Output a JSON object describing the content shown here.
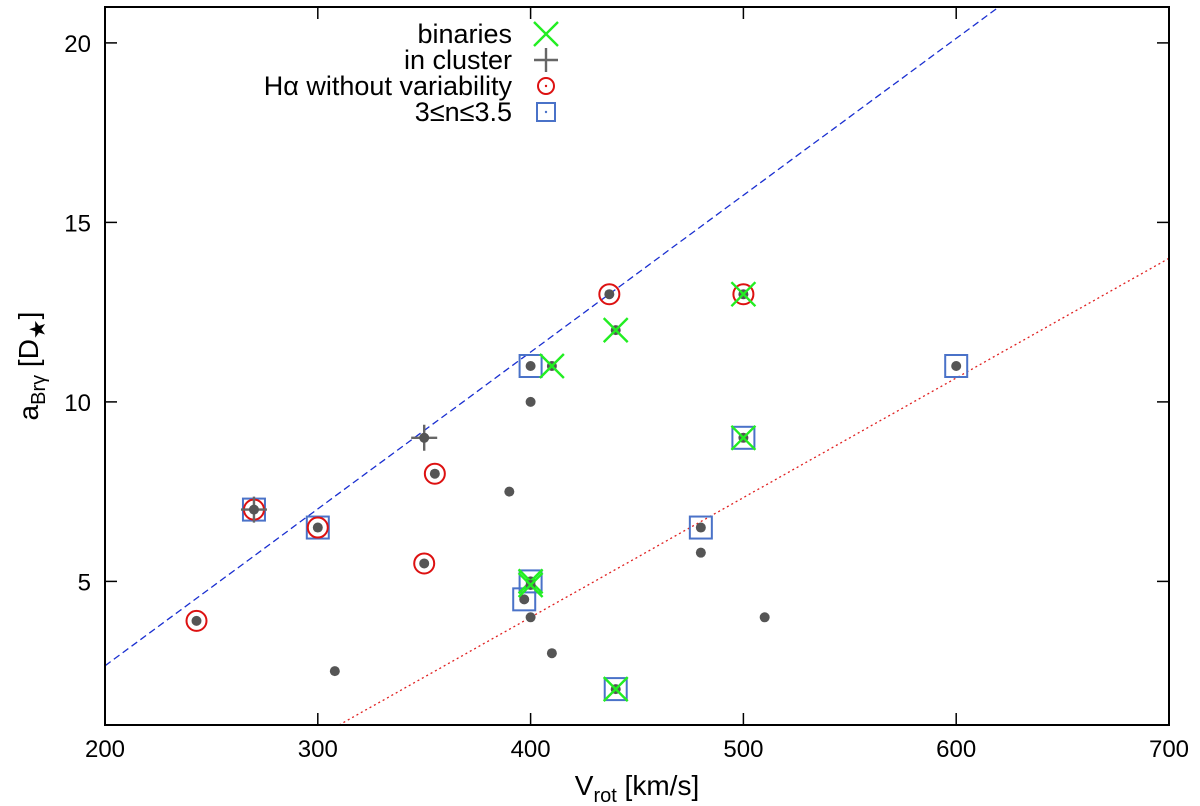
{
  "chart_data": {
    "type": "scatter",
    "title": "",
    "xlabel": {
      "main": "V",
      "sub": "rot",
      "unit": " [km/s]"
    },
    "ylabel": {
      "main": "a",
      "sub": "Brγ",
      "unit": " [D",
      "unit_sub": "★",
      "unit_end": "]"
    },
    "xlim": [
      200,
      700
    ],
    "ylim": [
      1,
      21
    ],
    "xticks": [
      200,
      300,
      400,
      500,
      600,
      700
    ],
    "yticks": [
      5,
      10,
      15,
      20
    ],
    "legend_position": "top-left",
    "legend": [
      {
        "label": "binaries",
        "marker": "x",
        "color": "#22ee22"
      },
      {
        "label": "in cluster",
        "marker": "plus",
        "color": "#666666"
      },
      {
        "label": "Hα without variability",
        "marker": "circle",
        "color": "#dd1111"
      },
      {
        "label": "3≤n≤3.5",
        "marker": "square",
        "color": "#4a72c8"
      }
    ],
    "colors": {
      "dot": "#555555",
      "blue_line": "#1a2fd0",
      "red_line": "#e02020"
    },
    "points": [
      {
        "x": 243,
        "y": 3.9,
        "flags": [
          "halpha"
        ]
      },
      {
        "x": 270,
        "y": 7.0,
        "flags": [
          "halpha",
          "cluster",
          "square"
        ]
      },
      {
        "x": 300,
        "y": 6.5,
        "flags": [
          "halpha",
          "square"
        ]
      },
      {
        "x": 308,
        "y": 2.5,
        "flags": []
      },
      {
        "x": 350,
        "y": 5.5,
        "flags": [
          "halpha"
        ]
      },
      {
        "x": 350,
        "y": 9.0,
        "flags": [
          "cluster"
        ]
      },
      {
        "x": 355,
        "y": 8.0,
        "flags": [
          "halpha"
        ]
      },
      {
        "x": 390,
        "y": 7.5,
        "flags": []
      },
      {
        "x": 397,
        "y": 4.5,
        "flags": [
          "square"
        ]
      },
      {
        "x": 400,
        "y": 11.0,
        "flags": [
          "square"
        ]
      },
      {
        "x": 400,
        "y": 10.0,
        "flags": []
      },
      {
        "x": 400,
        "y": 4.0,
        "flags": []
      },
      {
        "x": 400,
        "y": 5.0,
        "flags": [
          "binary",
          "square"
        ]
      },
      {
        "x": 400,
        "y": 4.9,
        "flags": [
          "binary"
        ]
      },
      {
        "x": 410,
        "y": 11.0,
        "flags": [
          "binary"
        ]
      },
      {
        "x": 410,
        "y": 3.0,
        "flags": []
      },
      {
        "x": 437,
        "y": 13.0,
        "flags": [
          "halpha"
        ]
      },
      {
        "x": 440,
        "y": 12.0,
        "flags": [
          "binary"
        ]
      },
      {
        "x": 440,
        "y": 2.0,
        "flags": [
          "binary",
          "square"
        ]
      },
      {
        "x": 480,
        "y": 6.5,
        "flags": [
          "square"
        ]
      },
      {
        "x": 480,
        "y": 5.8,
        "flags": []
      },
      {
        "x": 500,
        "y": 13.0,
        "flags": [
          "binary",
          "halpha"
        ]
      },
      {
        "x": 500,
        "y": 9.0,
        "flags": [
          "binary",
          "square"
        ]
      },
      {
        "x": 510,
        "y": 4.0,
        "flags": []
      },
      {
        "x": 600,
        "y": 11.0,
        "flags": [
          "square"
        ]
      }
    ],
    "fit_lines": [
      {
        "name": "upper fit",
        "style": "dashed",
        "color": "#1a2fd0",
        "x": [
          200,
          620
        ],
        "y": [
          2.65,
          21.0
        ]
      },
      {
        "name": "lower fit",
        "style": "dotted",
        "color": "#e02020",
        "x": [
          310,
          700
        ],
        "y": [
          1.0,
          14.0
        ]
      }
    ]
  }
}
